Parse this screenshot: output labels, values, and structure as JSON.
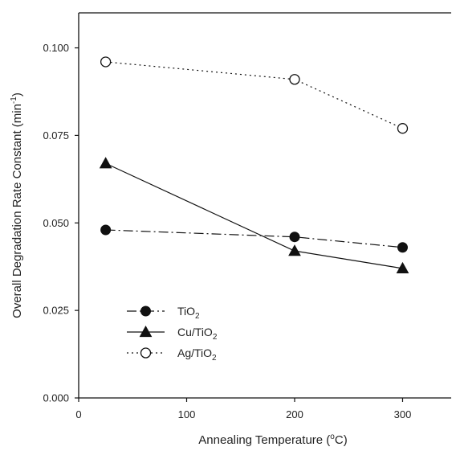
{
  "chart_data": {
    "type": "line",
    "xlabel": {
      "main": "Annealing Temperature (",
      "sup": "o",
      "tail": "C)"
    },
    "ylabel": {
      "main": "Overall Degradation Rate Constant (min",
      "sup": "-1",
      "tail": ")"
    },
    "xlim": [
      0,
      345
    ],
    "ylim": [
      0,
      0.11
    ],
    "x_ticks": [
      {
        "value": 0,
        "label": "0"
      },
      {
        "value": 100,
        "label": "100"
      },
      {
        "value": 200,
        "label": "200"
      },
      {
        "value": 300,
        "label": "300"
      }
    ],
    "y_ticks": [
      {
        "value": 0.0,
        "label": "0.000"
      },
      {
        "value": 0.025,
        "label": "0.025"
      },
      {
        "value": 0.05,
        "label": "0.050"
      },
      {
        "value": 0.075,
        "label": "0.075"
      },
      {
        "value": 0.1,
        "label": "0.100"
      }
    ],
    "legend_position": "lower-left",
    "grid": false,
    "series": [
      {
        "name": "TiO2",
        "label_main": "TiO",
        "label_sub": "2",
        "marker": "filled-circle",
        "line_style": "dash-dot",
        "x": [
          25,
          200,
          300
        ],
        "y": [
          0.048,
          0.046,
          0.043
        ]
      },
      {
        "name": "Cu/TiO2",
        "label_main": "Cu/TiO",
        "label_sub": "2",
        "marker": "filled-triangle",
        "line_style": "solid",
        "x": [
          25,
          200,
          300
        ],
        "y": [
          0.067,
          0.042,
          0.037
        ]
      },
      {
        "name": "Ag/TiO2",
        "label_main": "Ag/TiO",
        "label_sub": "2",
        "marker": "open-circle",
        "line_style": "dotted",
        "x": [
          25,
          200,
          300
        ],
        "y": [
          0.096,
          0.091,
          0.077
        ]
      }
    ]
  }
}
